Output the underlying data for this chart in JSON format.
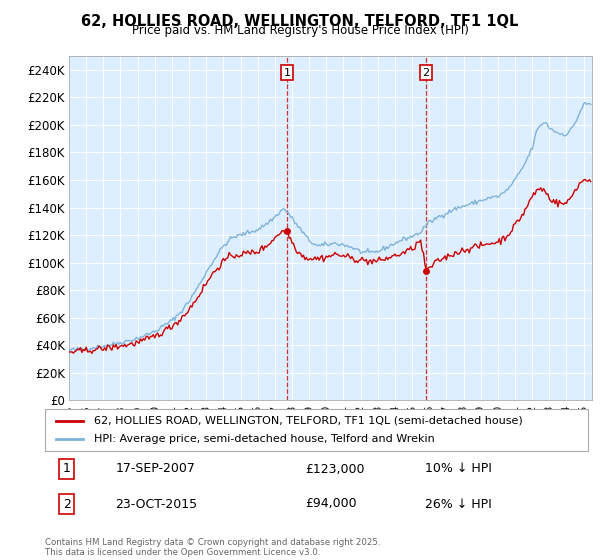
{
  "title": "62, HOLLIES ROAD, WELLINGTON, TELFORD, TF1 1QL",
  "subtitle": "Price paid vs. HM Land Registry's House Price Index (HPI)",
  "ylabel_ticks": [
    "£0",
    "£20K",
    "£40K",
    "£60K",
    "£80K",
    "£100K",
    "£120K",
    "£140K",
    "£160K",
    "£180K",
    "£200K",
    "£220K",
    "£240K"
  ],
  "ytick_values": [
    0,
    20000,
    40000,
    60000,
    80000,
    100000,
    120000,
    140000,
    160000,
    180000,
    200000,
    220000,
    240000
  ],
  "ylim": [
    0,
    250000
  ],
  "sale1": {
    "date_x": 2007.72,
    "price": 123000,
    "label": "1",
    "date_str": "17-SEP-2007",
    "price_str": "£123,000",
    "hpi_diff": "10% ↓ HPI"
  },
  "sale2": {
    "date_x": 2015.81,
    "price": 94000,
    "label": "2",
    "date_str": "23-OCT-2015",
    "price_str": "£94,000",
    "hpi_diff": "26% ↓ HPI"
  },
  "legend_line1": "62, HOLLIES ROAD, WELLINGTON, TELFORD, TF1 1QL (semi-detached house)",
  "legend_line2": "HPI: Average price, semi-detached house, Telford and Wrekin",
  "footer": "Contains HM Land Registry data © Crown copyright and database right 2025.\nThis data is licensed under the Open Government Licence v3.0.",
  "line_color_red": "#cc0000",
  "line_color_blue": "#7fb3d9",
  "bg_color": "#ddeeff",
  "sale_box_color": "#cc0000",
  "dashed_line_color": "#cc3333",
  "xmin": 1995,
  "xmax": 2025.5
}
